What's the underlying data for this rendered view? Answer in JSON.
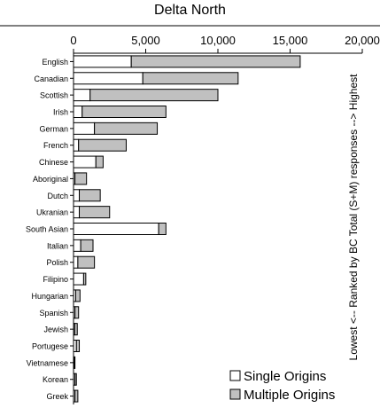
{
  "chart_data": {
    "type": "bar",
    "orientation": "horizontal",
    "stacked": true,
    "title": "Delta North",
    "ylabel": "Lowest <-- Ranked by BC Total (S+M) responses --> Highest",
    "xlim": [
      0,
      20000
    ],
    "xticks": [
      "0",
      "5,000",
      "10,000",
      "15,000",
      "20,000"
    ],
    "x_tick_values": [
      0,
      5000,
      10000,
      15000,
      20000
    ],
    "categories": [
      "English",
      "Canadian",
      "Scottish",
      "Irish",
      "German",
      "French",
      "Chinese",
      "Aboriginal",
      "Dutch",
      "Ukranian",
      "South Asian",
      "Italian",
      "Polish",
      "Filipino",
      "Hungarian",
      "Spanish",
      "Jewish",
      "Portugese",
      "Vietnamese",
      "Korean",
      "Greek"
    ],
    "series": [
      {
        "name": "Single Origins",
        "color": "#ffffff",
        "values": [
          4000,
          4800,
          1150,
          600,
          1450,
          350,
          1550,
          100,
          400,
          400,
          5900,
          500,
          300,
          700,
          150,
          100,
          80,
          200,
          60,
          100,
          100
        ]
      },
      {
        "name": "Multiple Origins",
        "color": "#c0c0c0",
        "values": [
          11700,
          6600,
          8850,
          5800,
          4350,
          3300,
          500,
          800,
          1450,
          2100,
          500,
          850,
          1150,
          150,
          300,
          250,
          180,
          200,
          40,
          100,
          200
        ]
      }
    ],
    "legend_position": "bottom-right",
    "grid": false
  }
}
